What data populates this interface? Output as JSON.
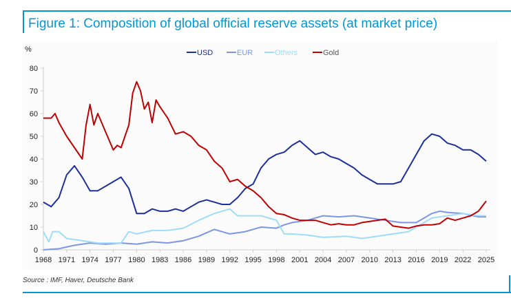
{
  "title": "Figure 1: Composition of global official reserve assets (at market price)",
  "source": "Source : IMF, Haver, Deutsche Bank",
  "chart_data": {
    "type": "line",
    "ylabel": "%",
    "ylim": [
      0,
      80
    ],
    "yticks": [
      "0",
      "10",
      "20",
      "30",
      "40",
      "50",
      "60",
      "70",
      "80"
    ],
    "xlim": [
      1968,
      2025
    ],
    "xticks": [
      "1968",
      "1971",
      "1974",
      "1977",
      "1980",
      "1983",
      "1986",
      "1989",
      "1992",
      "1995",
      "1998",
      "2001",
      "2004",
      "2007",
      "2010",
      "2013",
      "2016",
      "2019",
      "2022",
      "2025"
    ],
    "legend_position": "top-center",
    "grid": false,
    "series": [
      {
        "name": "USD",
        "color": "#1a2e9e",
        "points": [
          [
            1968,
            21
          ],
          [
            1969,
            19
          ],
          [
            1970,
            23
          ],
          [
            1971,
            33
          ],
          [
            1972,
            37
          ],
          [
            1973,
            32
          ],
          [
            1974,
            26
          ],
          [
            1975,
            26
          ],
          [
            1976,
            28
          ],
          [
            1977,
            30
          ],
          [
            1978,
            32
          ],
          [
            1979,
            27
          ],
          [
            1980,
            16
          ],
          [
            1981,
            16
          ],
          [
            1982,
            18
          ],
          [
            1983,
            17
          ],
          [
            1984,
            17
          ],
          [
            1985,
            18
          ],
          [
            1986,
            17
          ],
          [
            1987,
            19
          ],
          [
            1988,
            21
          ],
          [
            1989,
            22
          ],
          [
            1990,
            21
          ],
          [
            1991,
            20
          ],
          [
            1992,
            20
          ],
          [
            1993,
            23
          ],
          [
            1994,
            27
          ],
          [
            1995,
            29
          ],
          [
            1996,
            36
          ],
          [
            1997,
            40
          ],
          [
            1998,
            42
          ],
          [
            1999,
            43
          ],
          [
            2000,
            46
          ],
          [
            2001,
            48
          ],
          [
            2002,
            45
          ],
          [
            2003,
            42
          ],
          [
            2004,
            43
          ],
          [
            2005,
            41
          ],
          [
            2006,
            40
          ],
          [
            2007,
            38
          ],
          [
            2008,
            36
          ],
          [
            2009,
            33
          ],
          [
            2010,
            31
          ],
          [
            2011,
            29
          ],
          [
            2012,
            29
          ],
          [
            2013,
            29
          ],
          [
            2014,
            30
          ],
          [
            2015,
            36
          ],
          [
            2016,
            42
          ],
          [
            2017,
            48
          ],
          [
            2018,
            51
          ],
          [
            2019,
            50
          ],
          [
            2020,
            47
          ],
          [
            2021,
            46
          ],
          [
            2022,
            44
          ],
          [
            2023,
            44
          ],
          [
            2024,
            42
          ],
          [
            2025,
            39
          ]
        ]
      },
      {
        "name": "EUR",
        "color": "#7b96e6",
        "points": [
          [
            1968,
            0
          ],
          [
            1970,
            0.5
          ],
          [
            1972,
            2
          ],
          [
            1974,
            3
          ],
          [
            1976,
            2.5
          ],
          [
            1978,
            3
          ],
          [
            1980,
            2.5
          ],
          [
            1982,
            3.5
          ],
          [
            1984,
            3
          ],
          [
            1986,
            4
          ],
          [
            1988,
            6
          ],
          [
            1990,
            9
          ],
          [
            1992,
            7
          ],
          [
            1994,
            8
          ],
          [
            1996,
            10
          ],
          [
            1998,
            9.5
          ],
          [
            1999,
            11
          ],
          [
            2000,
            12
          ],
          [
            2002,
            13
          ],
          [
            2004,
            15
          ],
          [
            2006,
            14.5
          ],
          [
            2008,
            15
          ],
          [
            2010,
            14
          ],
          [
            2012,
            13
          ],
          [
            2014,
            12
          ],
          [
            2016,
            12
          ],
          [
            2018,
            16
          ],
          [
            2019,
            17
          ],
          [
            2020,
            16.5
          ],
          [
            2022,
            16
          ],
          [
            2024,
            14.5
          ],
          [
            2025,
            14.5
          ]
        ]
      },
      {
        "name": "Others",
        "color": "#9fdcf7",
        "points": [
          [
            1968,
            8
          ],
          [
            1968.7,
            3.5
          ],
          [
            1969.2,
            8
          ],
          [
            1970,
            8
          ],
          [
            1971,
            5
          ],
          [
            1973,
            4
          ],
          [
            1975,
            3
          ],
          [
            1978,
            3
          ],
          [
            1979,
            8
          ],
          [
            1980,
            7
          ],
          [
            1982,
            8.5
          ],
          [
            1984,
            8.5
          ],
          [
            1986,
            9.5
          ],
          [
            1988,
            13
          ],
          [
            1990,
            16
          ],
          [
            1992,
            18
          ],
          [
            1993,
            15
          ],
          [
            1996,
            15
          ],
          [
            1998,
            13
          ],
          [
            1999,
            7
          ],
          [
            2000,
            7
          ],
          [
            2002,
            6.5
          ],
          [
            2004,
            5.5
          ],
          [
            2007,
            6
          ],
          [
            2009,
            5
          ],
          [
            2011,
            6
          ],
          [
            2013,
            7
          ],
          [
            2015,
            8
          ],
          [
            2016,
            10
          ],
          [
            2018,
            14
          ],
          [
            2020,
            15
          ],
          [
            2022,
            16
          ],
          [
            2024,
            15
          ],
          [
            2025,
            15
          ]
        ]
      },
      {
        "name": "Gold",
        "color": "#c00000",
        "points": [
          [
            1968,
            58
          ],
          [
            1969,
            58
          ],
          [
            1969.5,
            60
          ],
          [
            1970,
            56
          ],
          [
            1971,
            50
          ],
          [
            1972,
            45
          ],
          [
            1973,
            40
          ],
          [
            1973.5,
            55
          ],
          [
            1974,
            64
          ],
          [
            1974.5,
            55
          ],
          [
            1975,
            60
          ],
          [
            1976,
            52
          ],
          [
            1977,
            44
          ],
          [
            1977.5,
            46
          ],
          [
            1978,
            45
          ],
          [
            1979,
            55
          ],
          [
            1979.5,
            69
          ],
          [
            1980,
            74
          ],
          [
            1980.5,
            70
          ],
          [
            1981,
            62
          ],
          [
            1981.5,
            65
          ],
          [
            1982,
            56
          ],
          [
            1982.5,
            66
          ],
          [
            1983,
            63
          ],
          [
            1984,
            58
          ],
          [
            1985,
            51
          ],
          [
            1986,
            52
          ],
          [
            1987,
            50
          ],
          [
            1988,
            46
          ],
          [
            1989,
            44
          ],
          [
            1990,
            39
          ],
          [
            1991,
            36
          ],
          [
            1992,
            30
          ],
          [
            1993,
            31
          ],
          [
            1994,
            28
          ],
          [
            1995,
            26
          ],
          [
            1996,
            23
          ],
          [
            1997,
            19
          ],
          [
            1998,
            16
          ],
          [
            1999,
            15.5
          ],
          [
            2000,
            14
          ],
          [
            2001,
            13
          ],
          [
            2002,
            13
          ],
          [
            2003,
            13
          ],
          [
            2004,
            12
          ],
          [
            2005,
            11
          ],
          [
            2006,
            11.5
          ],
          [
            2007,
            11
          ],
          [
            2008,
            11
          ],
          [
            2009,
            12
          ],
          [
            2010,
            12.5
          ],
          [
            2011,
            13
          ],
          [
            2012,
            13.5
          ],
          [
            2013,
            10.5
          ],
          [
            2014,
            10
          ],
          [
            2015,
            9.5
          ],
          [
            2016,
            10.5
          ],
          [
            2017,
            11
          ],
          [
            2018,
            11
          ],
          [
            2019,
            11.5
          ],
          [
            2020,
            14
          ],
          [
            2021,
            13
          ],
          [
            2022,
            14
          ],
          [
            2023,
            15
          ],
          [
            2024,
            17
          ],
          [
            2025,
            21.5
          ]
        ]
      }
    ]
  }
}
